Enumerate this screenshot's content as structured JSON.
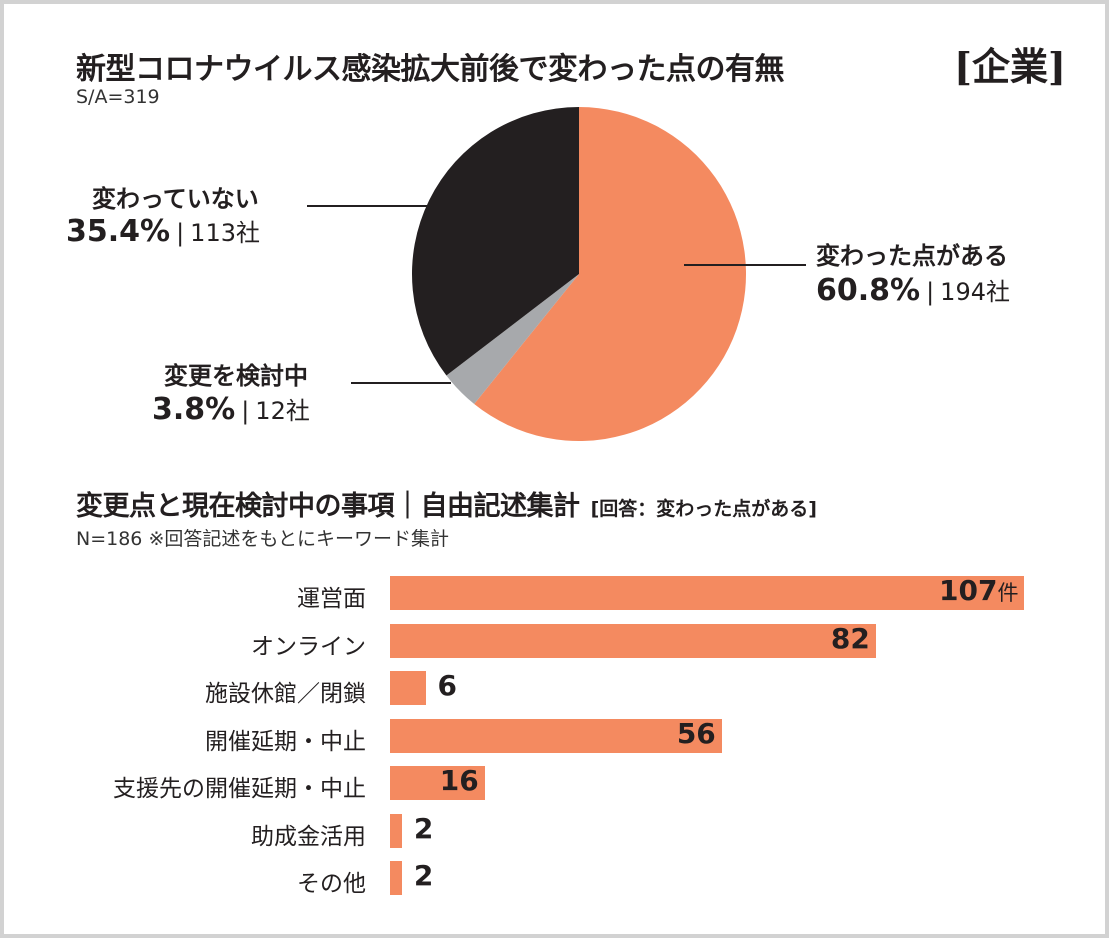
{
  "colors": {
    "orange": "#f48a60",
    "black": "#231f20",
    "gray": "#a7a9ac"
  },
  "pie": {
    "title": "新型コロナウイルス感染拡大前後で変わった点の有無",
    "badge": "[企業]",
    "sample": "S/A=319",
    "sep": "|"
  },
  "bars": {
    "title": "変更点と現在検討中の事項｜自由記述集計",
    "qualifier": "[回答：変わった点がある]",
    "note": "N=186 ※回答記述をもとにキーワード集計",
    "unit": "件"
  },
  "chart_data": [
    {
      "type": "pie",
      "title": "新型コロナウイルス感染拡大前後で変わった点の有無",
      "slices": [
        {
          "label": "変わった点がある",
          "percent": 60.8,
          "percent_text": "60.8%",
          "count_text": "194社",
          "color": "#f48a60"
        },
        {
          "label": "変更を検討中",
          "percent": 3.8,
          "percent_text": "3.8%",
          "count_text": "12社",
          "color": "#a7a9ac"
        },
        {
          "label": "変わっていない",
          "percent": 35.4,
          "percent_text": "35.4%",
          "count_text": "113社",
          "color": "#231f20"
        }
      ]
    },
    {
      "type": "bar",
      "title": "変更点と現在検討中の事項｜自由記述集計",
      "categories": [
        "運営面",
        "オンライン",
        "施設休館／閉鎖",
        "開催延期・中止",
        "支援先の開催延期・中止",
        "助成金活用",
        "その他"
      ],
      "values": [
        107,
        82,
        6,
        56,
        16,
        2,
        2
      ],
      "color": "#f48a60"
    }
  ]
}
